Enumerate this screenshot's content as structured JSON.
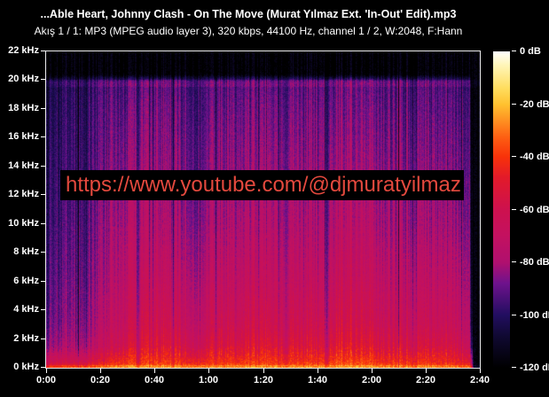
{
  "header": {
    "title": "...Able Heart, Johnny Clash - On The Move (Murat Yılmaz Ext. 'In-Out' Edit).mp3",
    "stream_info": "Akış 1 / 1: MP3 (MPEG audio layer 3), 320 kbps, 44100 Hz, channel 1 / 2, W:2048, F:Hann"
  },
  "watermark": {
    "text": "https://www.youtube.com/@djmuratyilmaz",
    "color": "#e4493e",
    "background": "#000000"
  },
  "chart_data": {
    "type": "heatmap",
    "subtype": "audio-spectrogram",
    "x_axis": {
      "unit": "time",
      "range_seconds": [
        0,
        160
      ],
      "tick_labels": [
        "0:00",
        "0:20",
        "0:40",
        "1:00",
        "1:20",
        "1:40",
        "2:00",
        "2:20",
        "2:40"
      ]
    },
    "y_axis": {
      "unit": "frequency",
      "range_khz": [
        0,
        22
      ],
      "tick_labels": [
        "22 kHz",
        "20 kHz",
        "18 kHz",
        "16 kHz",
        "14 kHz",
        "12 kHz",
        "10 kHz",
        "8 kHz",
        "6 kHz",
        "4 kHz",
        "2 kHz",
        "0 kHz"
      ]
    },
    "colorbar": {
      "unit": "dB",
      "range_db": [
        -120,
        0
      ],
      "tick_labels": [
        "0 dB",
        "-20 dB",
        "-40 dB",
        "-60 dB",
        "-80 dB",
        "-100 dB",
        "-120 dB"
      ]
    },
    "mp3_cutoff_khz": 20.0,
    "palette_stops": [
      {
        "t": 0.0,
        "rgb": [
          0,
          0,
          0
        ]
      },
      {
        "t": 0.1,
        "rgb": [
          16,
          9,
          50
        ]
      },
      {
        "t": 0.167,
        "rgb": [
          34,
          14,
          96
        ]
      },
      {
        "t": 0.267,
        "rgb": [
          110,
          18,
          140
        ]
      },
      {
        "t": 0.333,
        "rgb": [
          176,
          16,
          110
        ]
      },
      {
        "t": 0.42,
        "rgb": [
          196,
          17,
          95
        ]
      },
      {
        "t": 0.5,
        "rgb": [
          205,
          17,
          78
        ]
      },
      {
        "t": 0.6,
        "rgb": [
          226,
          26,
          42
        ]
      },
      {
        "t": 0.667,
        "rgb": [
          248,
          50,
          10
        ]
      },
      {
        "t": 0.725,
        "rgb": [
          253,
          92,
          18
        ]
      },
      {
        "t": 0.783,
        "rgb": [
          254,
          146,
          34
        ]
      },
      {
        "t": 0.833,
        "rgb": [
          255,
          194,
          48
        ]
      },
      {
        "t": 0.883,
        "rgb": [
          255,
          221,
          94
        ]
      },
      {
        "t": 0.958,
        "rgb": [
          255,
          246,
          186
        ]
      },
      {
        "t": 1.0,
        "rgb": [
          255,
          255,
          255
        ]
      }
    ],
    "freq_anchors_khz": [
      0,
      0.4,
      1.5,
      3,
      6,
      10,
      14,
      18,
      19.9,
      20.4,
      22
    ],
    "keyframes": [
      {
        "t": 0.0,
        "levels": [
          -50,
          -65,
          -85,
          -92,
          -96,
          -99,
          -102,
          -105,
          -108,
          -120,
          -120
        ]
      },
      {
        "t": 2.0,
        "levels": [
          -42,
          -60,
          -80,
          -86,
          -90,
          -94,
          -97,
          -100,
          -102,
          -120,
          -120
        ]
      },
      {
        "t": 14.0,
        "levels": [
          -42,
          -60,
          -80,
          -86,
          -90,
          -94,
          -97,
          -100,
          -102,
          -120,
          -120
        ]
      },
      {
        "t": 20.0,
        "levels": [
          -37,
          -52,
          -70,
          -77,
          -82,
          -86,
          -90,
          -93,
          -96,
          -120,
          -120
        ]
      },
      {
        "t": 27.0,
        "levels": [
          -32,
          -43,
          -59,
          -67,
          -73,
          -79,
          -85,
          -90,
          -93,
          -120,
          -120
        ]
      },
      {
        "t": 32.5,
        "levels": [
          -29,
          -39,
          -53,
          -61,
          -68,
          -75,
          -82,
          -87,
          -91,
          -120,
          -120
        ]
      },
      {
        "t": 33.8,
        "levels": [
          -38,
          -56,
          -72,
          -79,
          -84,
          -88,
          -92,
          -95,
          -98,
          -120,
          -120
        ]
      },
      {
        "t": 35.5,
        "levels": [
          -31,
          -39,
          -51,
          -59,
          -67,
          -75,
          -81,
          -86,
          -90,
          -120,
          -120
        ]
      },
      {
        "t": 49.0,
        "levels": [
          -33,
          -42,
          -55,
          -63,
          -71,
          -79,
          -84,
          -89,
          -92,
          -120,
          -120
        ]
      },
      {
        "t": 51.5,
        "levels": [
          -34,
          -46,
          -62,
          -71,
          -78,
          -85,
          -90,
          -94,
          -96,
          -120,
          -120
        ]
      },
      {
        "t": 58.5,
        "levels": [
          -34,
          -46,
          -62,
          -71,
          -78,
          -85,
          -90,
          -94,
          -96,
          -120,
          -120
        ]
      },
      {
        "t": 60.5,
        "levels": [
          -33,
          -42,
          -55,
          -63,
          -71,
          -79,
          -84,
          -89,
          -92,
          -120,
          -120
        ]
      },
      {
        "t": 68.5,
        "levels": [
          -33,
          -42,
          -55,
          -63,
          -71,
          -79,
          -84,
          -89,
          -92,
          -120,
          -120
        ]
      },
      {
        "t": 70.0,
        "levels": [
          -33,
          -44,
          -60,
          -69,
          -76,
          -83,
          -88,
          -92,
          -95,
          -120,
          -120
        ]
      },
      {
        "t": 71.5,
        "levels": [
          -33,
          -42,
          -55,
          -63,
          -71,
          -79,
          -84,
          -89,
          -92,
          -120,
          -120
        ]
      },
      {
        "t": 78.0,
        "levels": [
          -31,
          -40,
          -52,
          -60,
          -68,
          -76,
          -82,
          -87,
          -91,
          -120,
          -120
        ]
      },
      {
        "t": 87.0,
        "levels": [
          -31,
          -40,
          -52,
          -60,
          -68,
          -76,
          -82,
          -87,
          -91,
          -120,
          -120
        ]
      },
      {
        "t": 88.5,
        "levels": [
          -35,
          -49,
          -66,
          -74,
          -80,
          -86,
          -90,
          -94,
          -97,
          -120,
          -120
        ]
      },
      {
        "t": 90.0,
        "levels": [
          -33,
          -42,
          -55,
          -63,
          -71,
          -79,
          -84,
          -89,
          -92,
          -120,
          -120
        ]
      },
      {
        "t": 102.6,
        "levels": [
          -33,
          -42,
          -55,
          -63,
          -71,
          -79,
          -84,
          -89,
          -92,
          -120,
          -120
        ]
      },
      {
        "t": 103.6,
        "levels": [
          -37,
          -53,
          -70,
          -78,
          -83,
          -88,
          -92,
          -95,
          -98,
          -120,
          -120
        ]
      },
      {
        "t": 105.0,
        "levels": [
          -30,
          -38,
          -50,
          -58,
          -66,
          -74,
          -80,
          -86,
          -89,
          -120,
          -120
        ]
      },
      {
        "t": 119.0,
        "levels": [
          -30,
          -38,
          -50,
          -58,
          -66,
          -74,
          -80,
          -86,
          -89,
          -120,
          -120
        ]
      },
      {
        "t": 122.0,
        "levels": [
          -33,
          -42,
          -55,
          -63,
          -71,
          -79,
          -84,
          -89,
          -92,
          -120,
          -120
        ]
      },
      {
        "t": 140.0,
        "levels": [
          -34,
          -43,
          -56,
          -65,
          -72,
          -80,
          -85,
          -90,
          -93,
          -120,
          -120
        ]
      },
      {
        "t": 152.0,
        "levels": [
          -35,
          -46,
          -60,
          -68,
          -75,
          -83,
          -88,
          -93,
          -95,
          -120,
          -120
        ]
      },
      {
        "t": 156.3,
        "levels": [
          -38,
          -52,
          -68,
          -76,
          -82,
          -88,
          -92,
          -96,
          -98,
          -120,
          -120
        ]
      },
      {
        "t": 157.2,
        "levels": [
          -50,
          -75,
          -100,
          -108,
          -113,
          -116,
          -118,
          -120,
          -120,
          -120,
          -120
        ]
      },
      {
        "t": 158.0,
        "levels": [
          -120,
          -120,
          -120,
          -120,
          -120,
          -120,
          -120,
          -120,
          -120,
          -120,
          -120
        ]
      },
      {
        "t": 160.0,
        "levels": [
          -120,
          -120,
          -120,
          -120,
          -120,
          -120,
          -120,
          -120,
          -120,
          -120,
          -120
        ]
      }
    ],
    "texture": {
      "column_jitter_db": 8,
      "dark_column_chance": 0.05,
      "dark_column_extra_db": 14,
      "pixel_noise_db": 4.5,
      "bass_pixel_noise_db": 7,
      "bass_boost_db": 7,
      "cutoff_edge_boost_db": 4
    }
  }
}
